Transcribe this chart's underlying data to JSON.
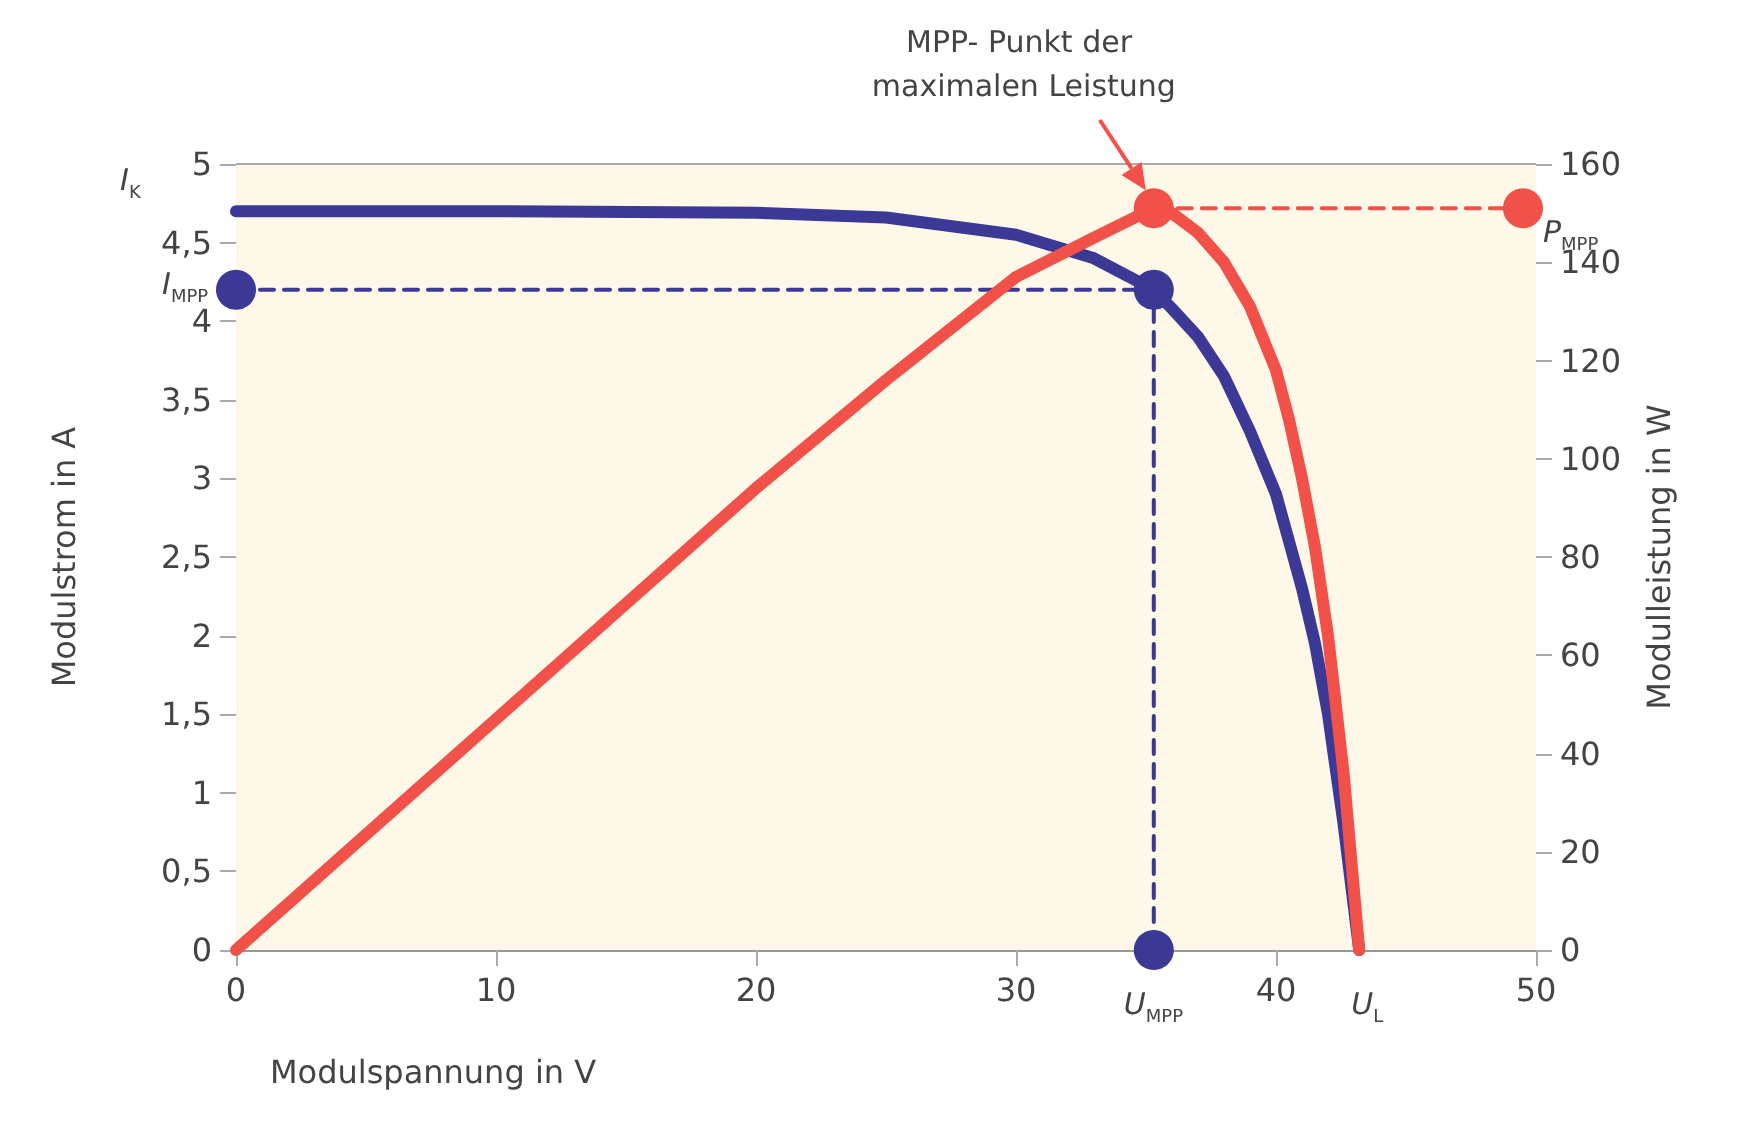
{
  "chart_data": {
    "type": "line",
    "xlabel": "Modulspannung in V",
    "ylabel": "Modulstrom in A",
    "y2label": "Modulleistung in W",
    "xlim": [
      0,
      50
    ],
    "xticks": [
      0,
      10,
      20,
      30,
      40,
      50
    ],
    "ylim": [
      0,
      5
    ],
    "yticks": [
      0,
      {
        "value": 0.5,
        "label": "0,5"
      },
      1,
      {
        "value": 1.5,
        "label": "1,5"
      },
      2,
      {
        "value": 2.5,
        "label": "2,5"
      },
      3,
      {
        "value": 3.5,
        "label": "3,5"
      },
      4,
      {
        "value": 4.5,
        "label": "4,5"
      },
      5
    ],
    "y2lim": [
      0,
      160
    ],
    "y2ticks": [
      0,
      20,
      40,
      60,
      80,
      100,
      120,
      140,
      160
    ],
    "annotations": [
      "MPP- Punkt der maximalen Leistung",
      "I$_{K}$",
      {
        "text": "U$_{L}$",
        "x": 43.2,
        "y": 0
      }
    ],
    "series": [
      {
        "color": "#3b3896",
        "axis": "y",
        "x": [
          0,
          10,
          20,
          25,
          30,
          33,
          35.3,
          36,
          37,
          38,
          39,
          40,
          40.5,
          41,
          41.5,
          42,
          42.6,
          43.2
        ],
        "values": [
          4.7,
          4.7,
          4.69,
          4.66,
          4.55,
          4.4,
          4.2,
          4.08,
          3.9,
          3.65,
          3.3,
          2.9,
          2.6,
          2.3,
          1.95,
          1.5,
          0.8,
          0
        ]
      },
      {
        "color": "#f2514a",
        "axis": "y2",
        "x": [
          0,
          10,
          20,
          25,
          30,
          33,
          35.3,
          36,
          37,
          38,
          39,
          40,
          40.5,
          41,
          41.5,
          42,
          42.6,
          43.2
        ],
        "values": [
          0,
          47,
          94,
          116,
          137,
          145,
          151,
          150,
          146,
          140,
          131,
          118,
          108,
          96,
          82,
          64,
          36,
          0
        ]
      },
      {
        "line_style": "dashed",
        "color": "#3b3896",
        "axis": "y",
        "x": [
          0,
          35.3,
          35.3
        ],
        "values": [
          4.2,
          4.2,
          0
        ]
      },
      {
        "line_style": "dashed",
        "color": "#f2514a",
        "axis": "y2",
        "x": [
          35.3,
          49.5
        ],
        "values": [
          151,
          151
        ]
      },
      {
        "type": "scatter",
        "marker": "circle",
        "color": "#3b3896",
        "axis": "y",
        "x": [
          0,
          35.3,
          35.3
        ],
        "values": [
          4.2,
          4.2,
          0
        ],
        "value_labels": [
          "I$_{MPP}$",
          null,
          "U$_{MPP}$"
        ]
      },
      {
        "type": "scatter",
        "marker": "circle",
        "color": "#f2514a",
        "axis": "y2",
        "x": [
          35.3,
          49.5
        ],
        "values": [
          151,
          151
        ],
        "value_labels": [
          null,
          "P$_{MPP}$"
        ]
      }
    ]
  }
}
